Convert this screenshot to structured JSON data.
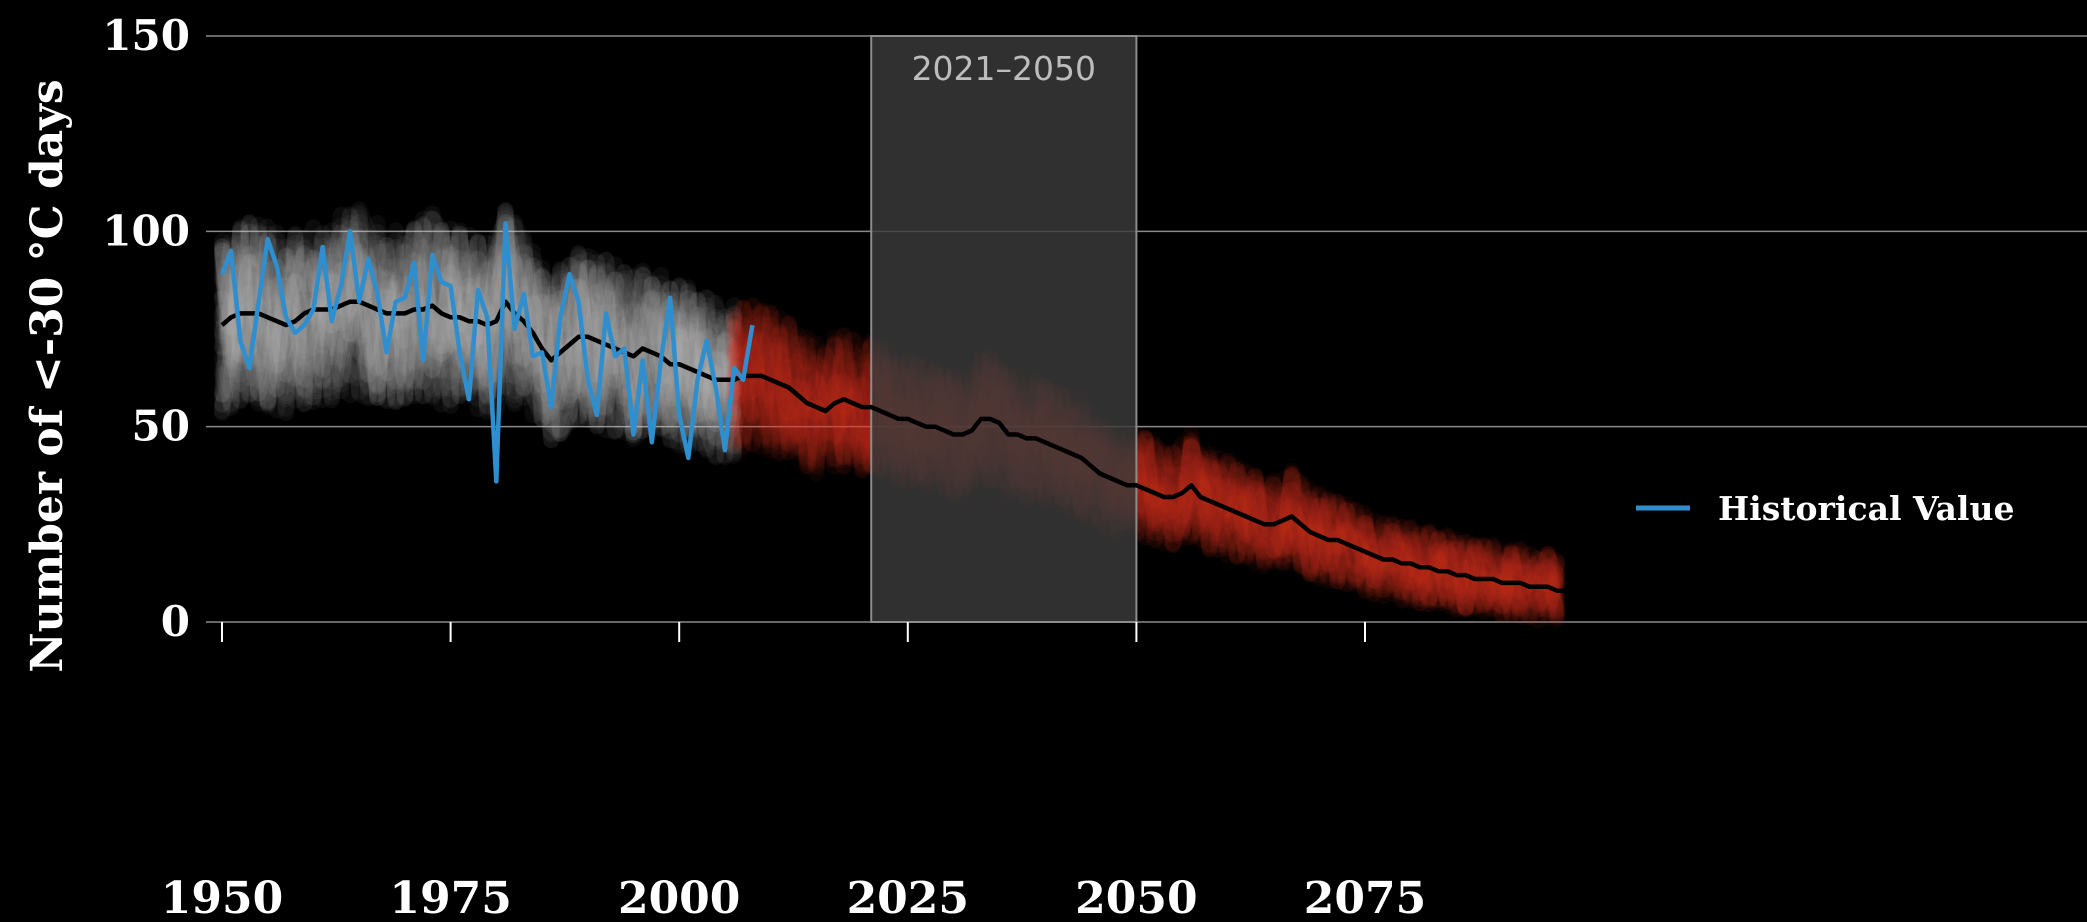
{
  "chart_data": {
    "type": "line",
    "ylabel": "Number of <-30 °C days",
    "xlim": [
      1949,
      2096
    ],
    "ylim": [
      0,
      150
    ],
    "x_ticks": [
      1950,
      1975,
      2000,
      2025,
      2050,
      2075
    ],
    "x_tick_labels": [
      "1950",
      "1975",
      "2000",
      "2025",
      "2050",
      "2075"
    ],
    "y_ticks": [
      0,
      50,
      100,
      150
    ],
    "y_tick_labels": [
      "0",
      "50",
      "100",
      "150"
    ],
    "grid": true,
    "highlight_span": {
      "start": 2021,
      "end": 2050,
      "label": "2021–2050"
    },
    "legend": {
      "placement": "right"
    },
    "colors": {
      "background": "#000000",
      "historical_value": "#2f8fce",
      "ensemble_mean": "#000000",
      "historical_ensemble": "#d9d9d9",
      "projection_ensemble": "#e8402c",
      "highlight_span": "#3a3a3a",
      "grid": "#8a8a8a"
    },
    "series": [
      {
        "name": "Historical Value",
        "in_legend": true,
        "x_start": 1950,
        "values": [
          89,
          95,
          72,
          65,
          82,
          98,
          91,
          78,
          74,
          76,
          80,
          96,
          77,
          86,
          100,
          82,
          93,
          84,
          69,
          82,
          83,
          92,
          67,
          94,
          87,
          86,
          69,
          57,
          85,
          78,
          36,
          102,
          75,
          84,
          68,
          69,
          55,
          78,
          89,
          82,
          62,
          53,
          79,
          68,
          70,
          48,
          67,
          46,
          67,
          83,
          53,
          42,
          62,
          72,
          60,
          44,
          65,
          62,
          76
        ]
      },
      {
        "in_legend": false,
        "style": "ensemble-mean",
        "x_start": 1950,
        "values": [
          76,
          78,
          79,
          79,
          79,
          78,
          77,
          76,
          77,
          79,
          80,
          80,
          80,
          81,
          82,
          82,
          81,
          80,
          79,
          79,
          79,
          80,
          80,
          81,
          79,
          78,
          78,
          77,
          77,
          76,
          77,
          82,
          79,
          77,
          74,
          70,
          67,
          69,
          71,
          73,
          73,
          72,
          71,
          70,
          69,
          68,
          70,
          69,
          68,
          66,
          66,
          65,
          64,
          63,
          62,
          62,
          62,
          63,
          63,
          63,
          62,
          61,
          60,
          58,
          56,
          55,
          54,
          56,
          57,
          56,
          55,
          55,
          54,
          53,
          52,
          52,
          51,
          50,
          50,
          49,
          48,
          48,
          49,
          52,
          52,
          51,
          48,
          48,
          47,
          47,
          46,
          45,
          44,
          43,
          42,
          40,
          38,
          37,
          36,
          35,
          35,
          34,
          33,
          32,
          32,
          33,
          35,
          32,
          31,
          30,
          29,
          28,
          27,
          26,
          25,
          25,
          26,
          27,
          25,
          23,
          22,
          21,
          21,
          20,
          19,
          18,
          17,
          16,
          16,
          15,
          15,
          14,
          14,
          13,
          13,
          12,
          12,
          11,
          11,
          11,
          10,
          10,
          10,
          9,
          9,
          9,
          8,
          8
        ]
      }
    ]
  }
}
